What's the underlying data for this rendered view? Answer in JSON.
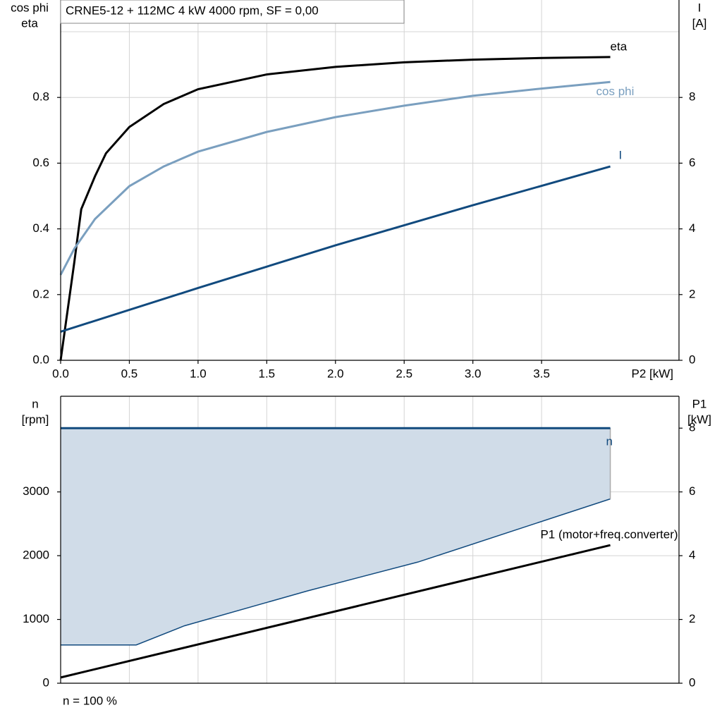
{
  "chart_data": [
    {
      "type": "line",
      "title": "CRNE5-12 + 112MC   4 kW   4000 rpm, SF = 0,00",
      "ylabel": [
        "cos phi",
        "eta"
      ],
      "y2label": [
        "I",
        "[A]"
      ],
      "xlabel": "P2 [kW]",
      "xlim": [
        0,
        4.5
      ],
      "xticks": [
        {
          "value": 0,
          "label": "0.0"
        },
        0.5,
        {
          "value": 1,
          "label": "1.0"
        },
        1.5,
        {
          "value": 2,
          "label": "2.0"
        },
        2.5,
        {
          "value": 3,
          "label": "3.0"
        },
        3.5
      ],
      "ylim": [
        0,
        1
      ],
      "yticks": [
        {
          "value": 0,
          "label": "0.0"
        },
        0.2,
        0.4,
        0.6,
        0.8
      ],
      "y2lim": [
        0,
        10
      ],
      "y2ticks": [
        0,
        2,
        4,
        6,
        8
      ],
      "grid": true,
      "series": [
        {
          "name": "eta",
          "color": "#000000",
          "x": [
            0,
            0.1,
            0.15,
            0.25,
            0.33,
            0.5,
            0.75,
            1.0,
            1.5,
            2.0,
            2.5,
            3.0,
            3.5,
            4.0
          ],
          "values": [
            0,
            0.3,
            0.46,
            0.56,
            0.63,
            0.71,
            0.78,
            0.825,
            0.87,
            0.893,
            0.907,
            0.915,
            0.92,
            0.923
          ]
        },
        {
          "name": "cos phi",
          "color": "#7a9fbf",
          "x": [
            0,
            0.1,
            0.25,
            0.5,
            0.75,
            1.0,
            1.5,
            2.0,
            2.5,
            3.0,
            3.5,
            4.0
          ],
          "values": [
            0.26,
            0.34,
            0.43,
            0.53,
            0.59,
            0.635,
            0.695,
            0.74,
            0.775,
            0.805,
            0.827,
            0.847
          ]
        },
        {
          "name": "I",
          "color": "#114a7e",
          "axis": "y2",
          "x": [
            0,
            1,
            2,
            3,
            4
          ],
          "values": [
            0.87,
            2.2,
            3.5,
            4.72,
            5.9
          ]
        }
      ]
    },
    {
      "type": "area",
      "ylabel": [
        "n",
        "[rpm]"
      ],
      "y2label": [
        "P1",
        "[kW]"
      ],
      "note": "n = 100 %",
      "xlim": [
        0,
        4.5
      ],
      "ylim": [
        0,
        4500
      ],
      "yticks": [
        0,
        1000,
        2000,
        3000
      ],
      "y2lim": [
        0,
        9
      ],
      "y2ticks": [
        0,
        2,
        4,
        6,
        8
      ],
      "grid": true,
      "fill": "#d0dce8",
      "series": [
        {
          "name": "n",
          "color": "#114a7e",
          "x": [
            0,
            0.55,
            0.9,
            1.8,
            2.6,
            4.0
          ],
          "values": [
            4000,
            4000,
            4000,
            4000,
            4000,
            4000
          ],
          "lower": [
            600,
            600,
            900,
            1450,
            1900,
            2890
          ]
        },
        {
          "name": "P1 (motor+freq.converter)",
          "color": "#000000",
          "axis": "y2",
          "x": [
            0,
            4.0
          ],
          "values": [
            0.18,
            4.33
          ]
        }
      ]
    }
  ]
}
